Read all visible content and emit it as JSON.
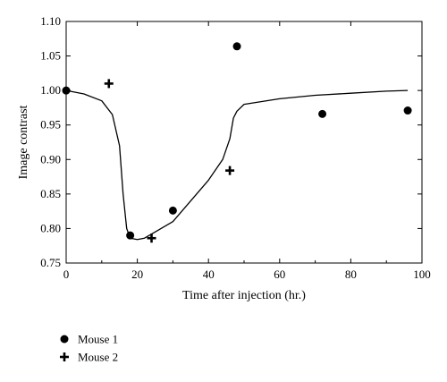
{
  "chart_data": {
    "type": "scatter",
    "xlabel": "Time after injection (hr.)",
    "ylabel": "Image contrast",
    "xlim": [
      0,
      100
    ],
    "ylim": [
      0.75,
      1.1
    ],
    "xticks": [
      0,
      20,
      40,
      60,
      80,
      100
    ],
    "xtick_labels": [
      "0",
      "20",
      "40",
      "60",
      "80",
      "100"
    ],
    "yticks": [
      0.75,
      0.8,
      0.85,
      0.9,
      0.95,
      1.0,
      1.05,
      1.1
    ],
    "ytick_labels": [
      "0.75",
      "0.80",
      "0.85",
      "0.90",
      "0.95",
      "1.00",
      "1.05",
      "1.10"
    ],
    "grid": false,
    "legend_position": "bottom-left, below plot",
    "series": [
      {
        "name": "Mouse 1",
        "marker": "circle",
        "color": "#000000",
        "x": [
          0,
          18,
          30,
          48,
          72,
          96
        ],
        "y": [
          1.0,
          0.79,
          0.826,
          1.064,
          0.966,
          0.971
        ]
      },
      {
        "name": "Mouse 2",
        "marker": "plus",
        "color": "#000000",
        "x": [
          12,
          24,
          46
        ],
        "y": [
          1.01,
          0.786,
          0.884
        ]
      }
    ],
    "fit_curve": {
      "color": "#000000",
      "x": [
        0,
        5,
        10,
        13,
        15,
        16,
        17,
        18,
        20,
        22,
        25,
        30,
        35,
        40,
        44,
        46,
        47,
        48,
        50,
        60,
        70,
        80,
        90,
        96
      ],
      "y": [
        1.0,
        0.995,
        0.985,
        0.965,
        0.92,
        0.85,
        0.8,
        0.786,
        0.784,
        0.786,
        0.795,
        0.81,
        0.84,
        0.87,
        0.9,
        0.93,
        0.96,
        0.97,
        0.98,
        0.988,
        0.993,
        0.996,
        0.999,
        1.0
      ]
    }
  }
}
